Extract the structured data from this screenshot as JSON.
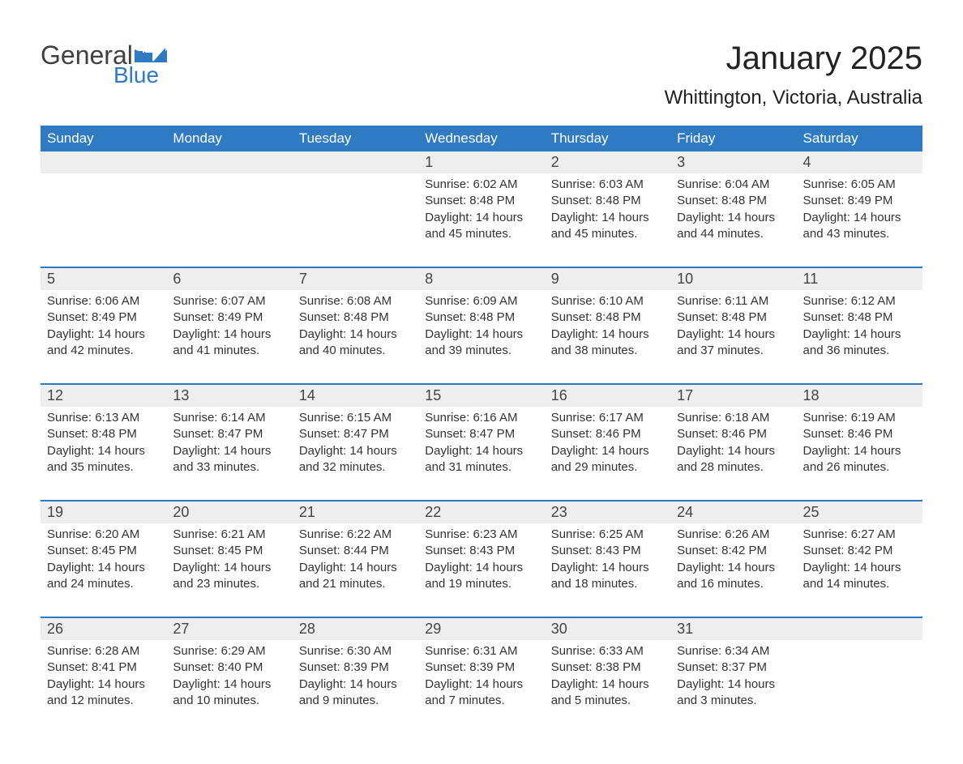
{
  "logo": {
    "word1": "General",
    "word2": "Blue",
    "word1_color": "#404040",
    "word2_color": "#2e7bc4",
    "flag_color": "#2e7bc4"
  },
  "title": "January 2025",
  "location": "Whittington, Victoria, Australia",
  "colors": {
    "header_bg": "#2e7bc4",
    "header_text": "#ffffff",
    "daynum_bg": "#eeeeee",
    "separator": "#2e7bc4",
    "body_text": "#333333",
    "background": "#ffffff"
  },
  "fonts": {
    "title_size_pt": 30,
    "location_size_pt": 18,
    "weekday_size_pt": 13,
    "daynum_size_pt": 14,
    "body_size_pt": 11
  },
  "weekdays": [
    "Sunday",
    "Monday",
    "Tuesday",
    "Wednesday",
    "Thursday",
    "Friday",
    "Saturday"
  ],
  "weeks": [
    {
      "days": [
        {
          "num": "",
          "sunrise": "",
          "sunset": "",
          "daylight": ""
        },
        {
          "num": "",
          "sunrise": "",
          "sunset": "",
          "daylight": ""
        },
        {
          "num": "",
          "sunrise": "",
          "sunset": "",
          "daylight": ""
        },
        {
          "num": "1",
          "sunrise": "Sunrise: 6:02 AM",
          "sunset": "Sunset: 8:48 PM",
          "daylight": "Daylight: 14 hours and 45 minutes."
        },
        {
          "num": "2",
          "sunrise": "Sunrise: 6:03 AM",
          "sunset": "Sunset: 8:48 PM",
          "daylight": "Daylight: 14 hours and 45 minutes."
        },
        {
          "num": "3",
          "sunrise": "Sunrise: 6:04 AM",
          "sunset": "Sunset: 8:48 PM",
          "daylight": "Daylight: 14 hours and 44 minutes."
        },
        {
          "num": "4",
          "sunrise": "Sunrise: 6:05 AM",
          "sunset": "Sunset: 8:49 PM",
          "daylight": "Daylight: 14 hours and 43 minutes."
        }
      ]
    },
    {
      "days": [
        {
          "num": "5",
          "sunrise": "Sunrise: 6:06 AM",
          "sunset": "Sunset: 8:49 PM",
          "daylight": "Daylight: 14 hours and 42 minutes."
        },
        {
          "num": "6",
          "sunrise": "Sunrise: 6:07 AM",
          "sunset": "Sunset: 8:49 PM",
          "daylight": "Daylight: 14 hours and 41 minutes."
        },
        {
          "num": "7",
          "sunrise": "Sunrise: 6:08 AM",
          "sunset": "Sunset: 8:48 PM",
          "daylight": "Daylight: 14 hours and 40 minutes."
        },
        {
          "num": "8",
          "sunrise": "Sunrise: 6:09 AM",
          "sunset": "Sunset: 8:48 PM",
          "daylight": "Daylight: 14 hours and 39 minutes."
        },
        {
          "num": "9",
          "sunrise": "Sunrise: 6:10 AM",
          "sunset": "Sunset: 8:48 PM",
          "daylight": "Daylight: 14 hours and 38 minutes."
        },
        {
          "num": "10",
          "sunrise": "Sunrise: 6:11 AM",
          "sunset": "Sunset: 8:48 PM",
          "daylight": "Daylight: 14 hours and 37 minutes."
        },
        {
          "num": "11",
          "sunrise": "Sunrise: 6:12 AM",
          "sunset": "Sunset: 8:48 PM",
          "daylight": "Daylight: 14 hours and 36 minutes."
        }
      ]
    },
    {
      "days": [
        {
          "num": "12",
          "sunrise": "Sunrise: 6:13 AM",
          "sunset": "Sunset: 8:48 PM",
          "daylight": "Daylight: 14 hours and 35 minutes."
        },
        {
          "num": "13",
          "sunrise": "Sunrise: 6:14 AM",
          "sunset": "Sunset: 8:47 PM",
          "daylight": "Daylight: 14 hours and 33 minutes."
        },
        {
          "num": "14",
          "sunrise": "Sunrise: 6:15 AM",
          "sunset": "Sunset: 8:47 PM",
          "daylight": "Daylight: 14 hours and 32 minutes."
        },
        {
          "num": "15",
          "sunrise": "Sunrise: 6:16 AM",
          "sunset": "Sunset: 8:47 PM",
          "daylight": "Daylight: 14 hours and 31 minutes."
        },
        {
          "num": "16",
          "sunrise": "Sunrise: 6:17 AM",
          "sunset": "Sunset: 8:46 PM",
          "daylight": "Daylight: 14 hours and 29 minutes."
        },
        {
          "num": "17",
          "sunrise": "Sunrise: 6:18 AM",
          "sunset": "Sunset: 8:46 PM",
          "daylight": "Daylight: 14 hours and 28 minutes."
        },
        {
          "num": "18",
          "sunrise": "Sunrise: 6:19 AM",
          "sunset": "Sunset: 8:46 PM",
          "daylight": "Daylight: 14 hours and 26 minutes."
        }
      ]
    },
    {
      "days": [
        {
          "num": "19",
          "sunrise": "Sunrise: 6:20 AM",
          "sunset": "Sunset: 8:45 PM",
          "daylight": "Daylight: 14 hours and 24 minutes."
        },
        {
          "num": "20",
          "sunrise": "Sunrise: 6:21 AM",
          "sunset": "Sunset: 8:45 PM",
          "daylight": "Daylight: 14 hours and 23 minutes."
        },
        {
          "num": "21",
          "sunrise": "Sunrise: 6:22 AM",
          "sunset": "Sunset: 8:44 PM",
          "daylight": "Daylight: 14 hours and 21 minutes."
        },
        {
          "num": "22",
          "sunrise": "Sunrise: 6:23 AM",
          "sunset": "Sunset: 8:43 PM",
          "daylight": "Daylight: 14 hours and 19 minutes."
        },
        {
          "num": "23",
          "sunrise": "Sunrise: 6:25 AM",
          "sunset": "Sunset: 8:43 PM",
          "daylight": "Daylight: 14 hours and 18 minutes."
        },
        {
          "num": "24",
          "sunrise": "Sunrise: 6:26 AM",
          "sunset": "Sunset: 8:42 PM",
          "daylight": "Daylight: 14 hours and 16 minutes."
        },
        {
          "num": "25",
          "sunrise": "Sunrise: 6:27 AM",
          "sunset": "Sunset: 8:42 PM",
          "daylight": "Daylight: 14 hours and 14 minutes."
        }
      ]
    },
    {
      "days": [
        {
          "num": "26",
          "sunrise": "Sunrise: 6:28 AM",
          "sunset": "Sunset: 8:41 PM",
          "daylight": "Daylight: 14 hours and 12 minutes."
        },
        {
          "num": "27",
          "sunrise": "Sunrise: 6:29 AM",
          "sunset": "Sunset: 8:40 PM",
          "daylight": "Daylight: 14 hours and 10 minutes."
        },
        {
          "num": "28",
          "sunrise": "Sunrise: 6:30 AM",
          "sunset": "Sunset: 8:39 PM",
          "daylight": "Daylight: 14 hours and 9 minutes."
        },
        {
          "num": "29",
          "sunrise": "Sunrise: 6:31 AM",
          "sunset": "Sunset: 8:39 PM",
          "daylight": "Daylight: 14 hours and 7 minutes."
        },
        {
          "num": "30",
          "sunrise": "Sunrise: 6:33 AM",
          "sunset": "Sunset: 8:38 PM",
          "daylight": "Daylight: 14 hours and 5 minutes."
        },
        {
          "num": "31",
          "sunrise": "Sunrise: 6:34 AM",
          "sunset": "Sunset: 8:37 PM",
          "daylight": "Daylight: 14 hours and 3 minutes."
        },
        {
          "num": "",
          "sunrise": "",
          "sunset": "",
          "daylight": ""
        }
      ]
    }
  ]
}
